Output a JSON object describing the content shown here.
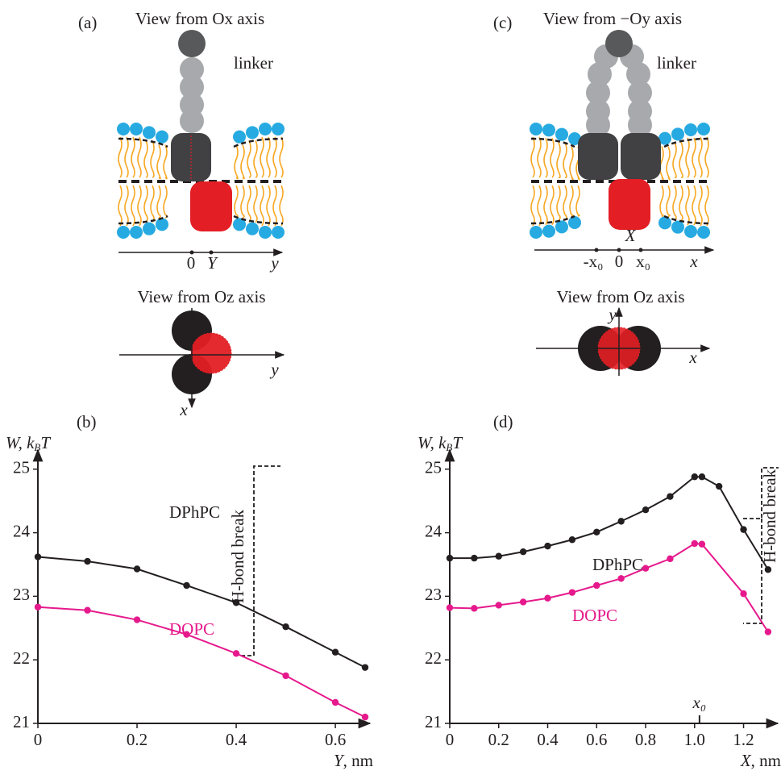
{
  "diagrams": [
    {
      "label": "(a)",
      "top_view_title": "View from Ox axis",
      "linker": "linker",
      "axis_labels": [
        "0",
        "Y",
        "y"
      ],
      "bottom_view_title": "View from Oz axis",
      "bottom_axis_labels": [
        "y",
        "x"
      ]
    },
    {
      "label": "(c)",
      "top_view_title": "View from −Oy axis",
      "linker": "linker",
      "axis_labels": [
        "-x₀",
        "0",
        "x₀",
        "x"
      ],
      "protein_label": "X",
      "bottom_view_title": "View from Oz axis",
      "bottom_axis_labels": [
        "y",
        "x"
      ]
    }
  ],
  "chart_data": [
    {
      "type": "line",
      "panel_label": "(b)",
      "ylabel": [
        "W",
        ", k",
        "B",
        "T"
      ],
      "xlabel": [
        "Y",
        ", nm"
      ],
      "xlim": [
        0,
        0.66
      ],
      "xticks": [
        0,
        0.2,
        0.4,
        0.6
      ],
      "ylim": [
        21,
        25.2
      ],
      "yticks": [
        21,
        22,
        23,
        24,
        25
      ],
      "annotation": "H-bond break",
      "series": [
        {
          "name": "DPhPC",
          "color": "#231f20",
          "x": [
            0,
            0.1,
            0.2,
            0.3,
            0.4,
            0.5,
            0.6,
            0.66
          ],
          "values": [
            23.62,
            23.55,
            23.43,
            23.17,
            22.9,
            22.52,
            22.12,
            21.88
          ]
        },
        {
          "name": "DOPC",
          "color": "#e6198c",
          "x": [
            0,
            0.1,
            0.2,
            0.3,
            0.4,
            0.5,
            0.6,
            0.66
          ],
          "values": [
            22.83,
            22.78,
            22.63,
            22.4,
            22.1,
            21.75,
            21.33,
            21.1
          ]
        }
      ]
    },
    {
      "type": "line",
      "panel_label": "(d)",
      "ylabel": [
        "W",
        ", k",
        "B",
        "T"
      ],
      "xlabel": [
        "X",
        ", nm"
      ],
      "xlim": [
        0,
        1.32
      ],
      "xticks": [
        0,
        0.2,
        0.4,
        0.6,
        0.8,
        {
          "value": 1,
          "label": "1.0"
        },
        1.2
      ],
      "ylim": [
        21,
        25.2
      ],
      "yticks": [
        21,
        22,
        23,
        24,
        25
      ],
      "annotation": "H-bond break",
      "marker": {
        "value": 1.02,
        "label": "x₀"
      },
      "series": [
        {
          "name": "DPhPC",
          "color": "#231f20",
          "x": [
            0,
            0.1,
            0.2,
            0.3,
            0.4,
            0.5,
            0.6,
            0.7,
            0.8,
            0.9,
            1.0,
            1.03,
            1.1,
            1.2,
            1.3
          ],
          "values": [
            23.6,
            23.6,
            23.63,
            23.7,
            23.79,
            23.89,
            24.01,
            24.18,
            24.36,
            24.57,
            24.88,
            24.88,
            24.73,
            24.05,
            23.42
          ]
        },
        {
          "name": "DOPC",
          "color": "#e6198c",
          "x": [
            0,
            0.1,
            0.2,
            0.3,
            0.4,
            0.5,
            0.6,
            0.7,
            0.8,
            0.9,
            1.0,
            1.03,
            1.2,
            1.3
          ],
          "values": [
            22.82,
            22.81,
            22.86,
            22.91,
            22.97,
            23.06,
            23.17,
            23.28,
            23.44,
            23.59,
            23.83,
            23.82,
            23.04,
            22.44
          ]
        }
      ]
    }
  ]
}
